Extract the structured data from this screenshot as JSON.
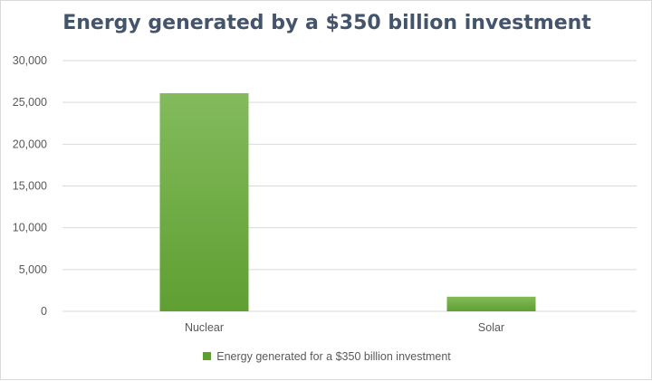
{
  "chart_data": {
    "type": "bar",
    "title": "Energy generated by a $350 billion investment",
    "categories": [
      "Nuclear",
      "Solar"
    ],
    "series": [
      {
        "name": "Energy generated for a $350 billion investment",
        "values": [
          26100,
          1750
        ]
      }
    ],
    "ylim": [
      0,
      30000
    ],
    "yticks": [
      "0",
      "5,000",
      "10,000",
      "15,000",
      "20,000",
      "25,000",
      "30,000"
    ],
    "ytick_values": [
      0,
      5000,
      10000,
      15000,
      20000,
      25000,
      30000
    ],
    "grid": true,
    "legend_position": "bottom",
    "colors": {
      "bar_top": "#83bb5c",
      "bar_bottom": "#5f9f32",
      "grid": "#d9d9d9",
      "title": "#44546a"
    }
  }
}
